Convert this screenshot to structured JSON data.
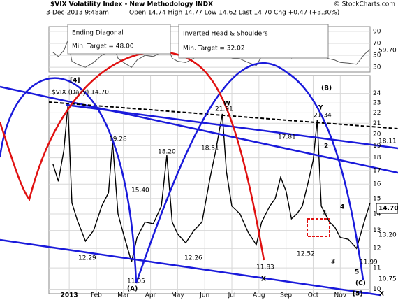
{
  "chart_data": {
    "type": "line",
    "title": "$VIX Volatility Index - New Methodology INDX",
    "subtitle": "3-Dec-2013 9:48am",
    "quote": "Open 14.74 High 14.77 Low 14.62 Last 14.70 Chg +0.47 (+3.30%)",
    "credit": "© StockCharts.com",
    "boxes": [
      [
        "Ending Diagonal",
        "Min. Target = 48.00"
      ],
      [
        "Inverted Head & Shoulders",
        "Min. Target = 32.02"
      ]
    ],
    "annotations": [
      "[4]",
      "(B)",
      "W",
      "X",
      "Y",
      "1",
      "2",
      "3",
      "4",
      "5",
      "(A)",
      "(C)",
      "[5]",
      "X"
    ],
    "price_labels": [
      "21.91",
      "21.34",
      "19.28",
      "18.51",
      "18.20",
      "17.81",
      "15.40",
      "12.29",
      "12.26",
      "11.83",
      "11.05",
      "12.52",
      "11.99"
    ],
    "right_labels": [
      "18.11",
      "14.70",
      "13.20",
      "10.75",
      "59.70"
    ],
    "x": [
      0.4,
      0.6,
      0.8,
      0.95,
      1.1,
      1.3,
      1.6,
      1.9,
      2.2,
      2.45,
      2.6,
      2.8,
      3.0,
      3.3,
      3.5,
      3.8,
      4.1,
      4.4,
      4.6,
      4.8,
      5.0,
      5.3,
      5.6,
      5.9,
      6.2,
      6.4,
      6.65,
      6.8,
      7.0,
      7.3,
      7.6,
      7.9,
      8.1,
      8.4,
      8.6,
      8.8,
      9.0,
      9.2,
      9.4,
      9.6,
      9.8,
      10.0,
      10.15,
      10.3,
      10.6,
      10.8,
      11.0,
      11.3,
      11.6,
      11.9,
      12.1
    ],
    "series": [
      {
        "name": "$VIX (Daily) 14.70",
        "color": "#000000",
        "values": [
          17.5,
          16.2,
          18.6,
          22.7,
          14.7,
          13.6,
          12.4,
          13.0,
          14.5,
          15.4,
          19.3,
          14.0,
          12.8,
          11.3,
          12.6,
          13.5,
          13.4,
          14.5,
          18.2,
          13.5,
          12.8,
          12.3,
          13.0,
          13.5,
          16.5,
          18.5,
          21.9,
          16.9,
          14.5,
          14.0,
          12.9,
          12.2,
          13.5,
          14.5,
          15.0,
          16.5,
          15.5,
          13.7,
          14.0,
          14.5,
          16.0,
          17.8,
          21.3,
          14.5,
          13.5,
          13.2,
          12.6,
          12.5,
          12.0,
          13.6,
          14.7
        ]
      },
      {
        "color": "#555555",
        "axis": "y2",
        "values": [
          55,
          48,
          58,
          75,
          40,
          35,
          30,
          38,
          50,
          55,
          70,
          45,
          38,
          30,
          42,
          50,
          48,
          55,
          68,
          45,
          40,
          38,
          45,
          50,
          62,
          68,
          76,
          55,
          45,
          44,
          38,
          33,
          48,
          55,
          58,
          64,
          55,
          45,
          48,
          52,
          60,
          66,
          72,
          48,
          44,
          42,
          38,
          37,
          35,
          52,
          59.7
        ]
      }
    ],
    "xlim": [
      0.25,
      12.1
    ],
    "xticks": [
      {
        "value": 1,
        "label": "2013"
      },
      {
        "value": 2,
        "label": "Feb"
      },
      {
        "value": 3,
        "label": "Mar"
      },
      {
        "value": 4,
        "label": "Apr"
      },
      {
        "value": 5,
        "label": "May"
      },
      {
        "value": 6,
        "label": "Jun"
      },
      {
        "value": 7,
        "label": "Jul"
      },
      {
        "value": 8,
        "label": "Aug"
      },
      {
        "value": 9,
        "label": "Sep"
      },
      {
        "value": 10,
        "label": "Oct"
      },
      {
        "value": 11,
        "label": "Nov"
      }
    ],
    "ylim": [
      9.8,
      26
    ],
    "log_y": true,
    "yticks": [
      10,
      11,
      12,
      13,
      14,
      15,
      16,
      17,
      18,
      19,
      20,
      21,
      22,
      23,
      24
    ],
    "y2lim": [
      22,
      98
    ],
    "y2ticks": [
      30,
      50,
      70,
      90
    ],
    "grid": true
  }
}
